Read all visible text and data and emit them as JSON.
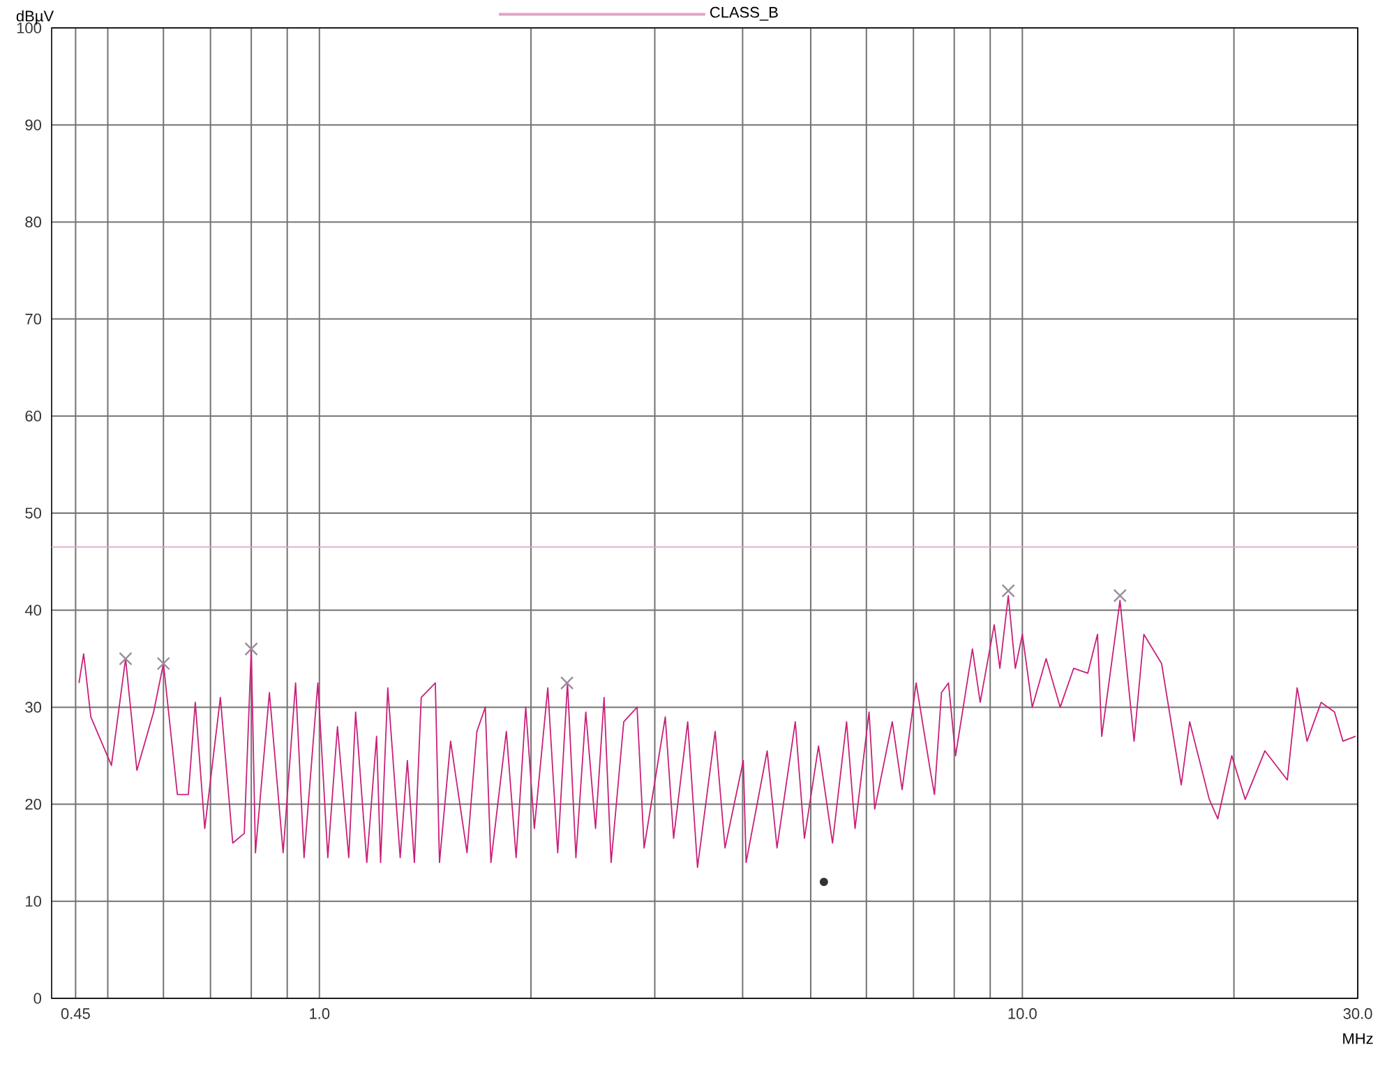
{
  "chart_data": {
    "type": "line",
    "xlabel": "MHz",
    "ylabel": "dBµV",
    "log": "x",
    "grid": true,
    "legend": "top",
    "xlim": [
      0.416,
      30
    ],
    "ylim": [
      0,
      100
    ],
    "xticks": [
      {
        "value": 0.45,
        "label": "0.45"
      },
      {
        "value": 0.5,
        "label": null
      },
      {
        "value": 0.6,
        "label": null
      },
      {
        "value": 0.7,
        "label": null
      },
      {
        "value": 0.8,
        "label": null
      },
      {
        "value": 0.9,
        "label": null
      },
      {
        "value": 1,
        "label": "1.0"
      },
      {
        "value": 2,
        "label": null
      },
      {
        "value": 3,
        "label": null
      },
      {
        "value": 4,
        "label": null
      },
      {
        "value": 5,
        "label": null
      },
      {
        "value": 6,
        "label": null
      },
      {
        "value": 7,
        "label": null
      },
      {
        "value": 8,
        "label": null
      },
      {
        "value": 9,
        "label": null
      },
      {
        "value": 10,
        "label": "10.0"
      },
      {
        "value": 20,
        "label": null
      },
      {
        "value": 30,
        "label": "30.0"
      }
    ],
    "yticks": [
      0,
      10,
      20,
      30,
      40,
      50,
      60,
      70,
      80,
      90,
      100
    ],
    "series": [
      {
        "color": "#c8207a",
        "x": [
          0.455,
          0.462,
          0.473,
          0.506,
          0.53,
          0.55,
          0.581,
          0.6,
          0.628,
          0.651,
          0.666,
          0.687,
          0.723,
          0.753,
          0.782,
          0.8,
          0.811,
          0.849,
          0.888,
          0.925,
          0.951,
          0.995,
          1.028,
          1.061,
          1.101,
          1.126,
          1.168,
          1.206,
          1.222,
          1.251,
          1.303,
          1.334,
          1.365,
          1.396,
          1.462,
          1.482,
          1.537,
          1.622,
          1.675,
          1.722,
          1.754,
          1.845,
          1.905,
          1.966,
          2.022,
          2.113,
          2.183,
          2.254,
          2.317,
          2.393,
          2.471,
          2.541,
          2.6,
          2.71,
          2.831,
          2.897,
          3.105,
          3.191,
          3.342,
          3.451,
          3.656,
          3.776,
          4.009,
          4.046,
          4.335,
          4.477,
          4.753,
          4.898,
          5.129,
          5.37,
          5.623,
          5.781,
          6.053,
          6.166,
          6.531,
          6.745,
          7.063,
          7.396,
          7.499,
          7.674,
          7.852,
          8.035,
          8.492,
          8.71,
          9.12,
          9.29,
          9.55,
          9.772,
          10.0,
          10.33,
          10.81,
          11.32,
          11.83,
          12.39,
          12.79,
          12.97,
          13.77,
          14.42,
          14.89,
          15.78,
          16.83,
          17.3,
          18.45,
          18.97,
          19.86,
          20.75,
          22.13,
          23.82,
          24.6,
          25.41,
          26.61,
          27.8,
          28.58,
          29.79
        ],
        "values": [
          32.5,
          35.5,
          29,
          24,
          35,
          23.5,
          29.5,
          34.5,
          21,
          21,
          30.5,
          17.5,
          31,
          16,
          17,
          36,
          15,
          31.5,
          15,
          32.5,
          14.5,
          32.5,
          14.5,
          28,
          14.5,
          29.5,
          14,
          27,
          14,
          32,
          14.5,
          24.5,
          14,
          31,
          32.5,
          14,
          26.5,
          15,
          27.5,
          30,
          14,
          27.5,
          14.5,
          30,
          17.5,
          32,
          15,
          32.5,
          14.5,
          29.5,
          17.5,
          31,
          14,
          28.5,
          30,
          15.5,
          29,
          16.5,
          28.5,
          13.5,
          27.5,
          15.5,
          24.5,
          14,
          25.5,
          15.5,
          28.5,
          16.5,
          26,
          16,
          28.5,
          17.5,
          29.5,
          19.5,
          28.5,
          21.5,
          32.5,
          23.5,
          21,
          31.5,
          32.5,
          25,
          36,
          30.5,
          38.5,
          34,
          41.5,
          34,
          37.5,
          30,
          35,
          30,
          34,
          33.5,
          37.5,
          27,
          41,
          26.5,
          37.5,
          34.5,
          22,
          28.5,
          20.5,
          18.5,
          25,
          20.5,
          25.5,
          22.5,
          32,
          26.5,
          30.5,
          29.5,
          26.5,
          27
        ]
      },
      {
        "name": "CLASS_B",
        "color": "#e3a3c6",
        "x": [
          0.416,
          30
        ],
        "values": [
          46.5,
          46.5
        ]
      },
      {
        "type": "scatter",
        "marker": "cross",
        "color": "#9a8c9a",
        "x": [
          0.53,
          0.6,
          0.8,
          2.25,
          9.55,
          13.77
        ],
        "values": [
          35,
          34.5,
          36,
          32.5,
          42,
          41.5
        ]
      },
      {
        "type": "scatter",
        "marker": "circle",
        "color": "#333333",
        "x": [
          5.22
        ],
        "values": [
          12
        ]
      }
    ]
  }
}
